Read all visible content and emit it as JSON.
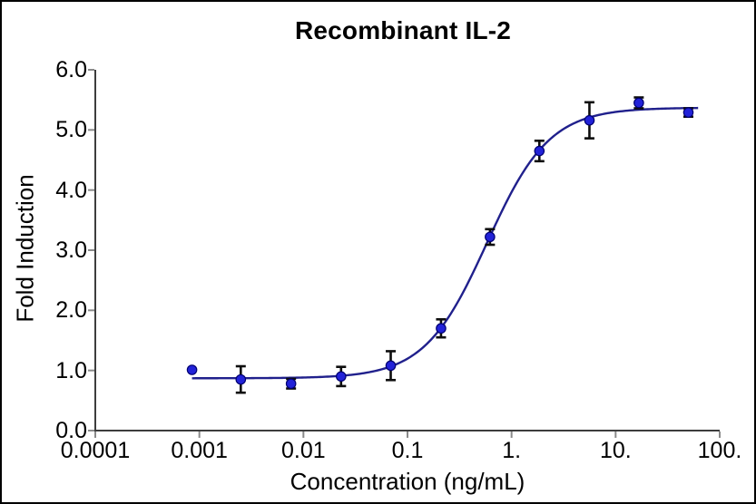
{
  "chart": {
    "title": "Recombinant IL-2",
    "xlabel": "Concentration (ng/mL)",
    "ylabel": "Fold Induction"
  },
  "chart_data": {
    "type": "scatter",
    "title": "Recombinant IL-2",
    "xlabel": "Concentration (ng/mL)",
    "ylabel": "Fold Induction",
    "x_scale": "log",
    "grid": false,
    "legend": "none",
    "xlim": [
      0.0001,
      100
    ],
    "ylim": [
      0.0,
      6.0
    ],
    "x_ticks": [
      0.0001,
      0.001,
      0.01,
      0.1,
      1,
      10,
      100
    ],
    "x_tick_labels": [
      "0.0001",
      "0.001",
      "0.01",
      "0.1",
      "1.",
      "10.",
      "100."
    ],
    "y_ticks": [
      0,
      1,
      2,
      3,
      4,
      5,
      6
    ],
    "y_tick_labels": [
      "0.0",
      "1.0",
      "2.0",
      "3.0",
      "4.0",
      "5.0",
      "6.0"
    ],
    "series": [
      {
        "name": "Recombinant IL-2",
        "marker": "circle",
        "error_bars": true,
        "points": [
          {
            "x": 0.00085,
            "y": 1.01,
            "err": 0.03
          },
          {
            "x": 0.0025,
            "y": 0.85,
            "err": 0.22
          },
          {
            "x": 0.0076,
            "y": 0.78,
            "err": 0.08
          },
          {
            "x": 0.023,
            "y": 0.9,
            "err": 0.16
          },
          {
            "x": 0.069,
            "y": 1.08,
            "err": 0.24
          },
          {
            "x": 0.21,
            "y": 1.7,
            "err": 0.15
          },
          {
            "x": 0.62,
            "y": 3.22,
            "err": 0.13
          },
          {
            "x": 1.85,
            "y": 4.65,
            "err": 0.17
          },
          {
            "x": 5.6,
            "y": 5.16,
            "err": 0.3
          },
          {
            "x": 16.7,
            "y": 5.45,
            "err": 0.09
          },
          {
            "x": 50,
            "y": 5.29,
            "err": 0.07
          }
        ]
      }
    ],
    "fit_curve": {
      "model": "4PL",
      "bottom": 0.87,
      "top": 5.37,
      "ec50": 0.58,
      "hill": 1.45,
      "x_start": 0.00085,
      "x_end": 62
    },
    "colors": {
      "marker": "#2222d8",
      "marker_edge": "#000070",
      "curve": "#20208c",
      "error_bar": "#0d0d0d",
      "axis": "#3d3d3d",
      "tick": "#8a8a8a",
      "text": "#000000",
      "background": "#ffffff",
      "border": "#000000"
    }
  }
}
